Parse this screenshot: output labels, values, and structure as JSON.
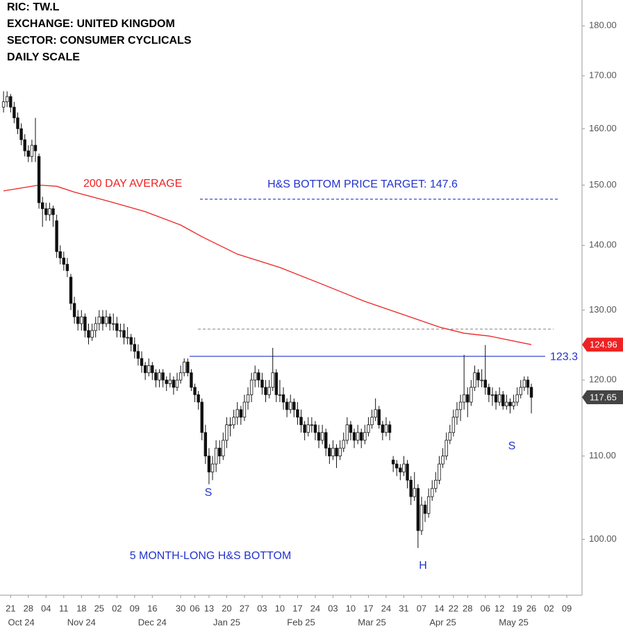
{
  "chart_data": {
    "type": "candlestick",
    "header": [
      "RIC:  TW.L",
      "EXCHANGE:  UNITED KINGDOM",
      "SECTOR:  CONSUMER CYCLICALS",
      "DAILY SCALE"
    ],
    "log_scale": true,
    "ylim": [
      93.8,
      185.4
    ],
    "yticks": [
      {
        "value": 100,
        "label": "100.00"
      },
      {
        "value": 110,
        "label": "110.00"
      },
      {
        "value": 120,
        "label": "120.00"
      },
      {
        "value": 130,
        "label": "130.00"
      },
      {
        "value": 140,
        "label": "140.00"
      },
      {
        "value": 150,
        "label": "150.00"
      },
      {
        "value": 160,
        "label": "160.00"
      },
      {
        "value": 170,
        "label": "170.00"
      },
      {
        "value": 180,
        "label": "180.00"
      }
    ],
    "xlim": [
      -1,
      163.3
    ],
    "xticks": [
      {
        "value": 2,
        "label": "21"
      },
      {
        "value": 7,
        "label": "28"
      },
      {
        "value": 12,
        "label": "04"
      },
      {
        "value": 17,
        "label": "11"
      },
      {
        "value": 22,
        "label": "18"
      },
      {
        "value": 27,
        "label": "25"
      },
      {
        "value": 32,
        "label": "02"
      },
      {
        "value": 37,
        "label": "09"
      },
      {
        "value": 42,
        "label": "16"
      },
      {
        "value": 50,
        "label": "30"
      },
      {
        "value": 54,
        "label": "06"
      },
      {
        "value": 58,
        "label": "13"
      },
      {
        "value": 63,
        "label": "20"
      },
      {
        "value": 68,
        "label": "27"
      },
      {
        "value": 73,
        "label": "03"
      },
      {
        "value": 78,
        "label": "10"
      },
      {
        "value": 83,
        "label": "17"
      },
      {
        "value": 88,
        "label": "24"
      },
      {
        "value": 93,
        "label": "03"
      },
      {
        "value": 98,
        "label": "10"
      },
      {
        "value": 103,
        "label": "17"
      },
      {
        "value": 108,
        "label": "24"
      },
      {
        "value": 113,
        "label": "31"
      },
      {
        "value": 118,
        "label": "07"
      },
      {
        "value": 123,
        "label": "14"
      },
      {
        "value": 127,
        "label": "22"
      },
      {
        "value": 131,
        "label": "28"
      },
      {
        "value": 136,
        "label": "06"
      },
      {
        "value": 140,
        "label": "12"
      },
      {
        "value": 145,
        "label": "19"
      },
      {
        "value": 149,
        "label": "26"
      },
      {
        "value": 154,
        "label": "02"
      },
      {
        "value": 159,
        "label": "09"
      }
    ],
    "month_labels": [
      {
        "value": 5,
        "label": "Oct 24"
      },
      {
        "value": 22,
        "label": "Nov 24"
      },
      {
        "value": 42,
        "label": "Dec 24"
      },
      {
        "value": 63,
        "label": "Jan 25"
      },
      {
        "value": 84,
        "label": "Feb 25"
      },
      {
        "value": 104,
        "label": "Mar 25"
      },
      {
        "value": 124,
        "label": "Apr 25"
      },
      {
        "value": 144,
        "label": "May 25"
      }
    ],
    "candles": [
      [
        164,
        167,
        163,
        165
      ],
      [
        165,
        167,
        164,
        166
      ],
      [
        166,
        166.5,
        163,
        164
      ],
      [
        164,
        165,
        161,
        162
      ],
      [
        162,
        163,
        159,
        160
      ],
      [
        160,
        161,
        157,
        158
      ],
      [
        158,
        159,
        155,
        156
      ],
      [
        156,
        157,
        154,
        155
      ],
      [
        155,
        158,
        154,
        157
      ],
      [
        157,
        162,
        154,
        156
      ],
      [
        155,
        155.5,
        146,
        147
      ],
      [
        147,
        148,
        143,
        146
      ],
      [
        146,
        147,
        144,
        145
      ],
      [
        145,
        147,
        144,
        146
      ],
      [
        146,
        146.5,
        143,
        145
      ],
      [
        144,
        145,
        138,
        139
      ],
      [
        139,
        140,
        137,
        138
      ],
      [
        138,
        139,
        136,
        137
      ],
      [
        137,
        138,
        135,
        136
      ],
      [
        135,
        135.5,
        130,
        131
      ],
      [
        131,
        132,
        128,
        129
      ],
      [
        129,
        130,
        127,
        128
      ],
      [
        128,
        130,
        127,
        129
      ],
      [
        129,
        129.5,
        126,
        127
      ],
      [
        127,
        128,
        125,
        126
      ],
      [
        126,
        128,
        125.5,
        127
      ],
      [
        127,
        129,
        126,
        128
      ],
      [
        128,
        130,
        127,
        129
      ],
      [
        129,
        130,
        127,
        128
      ],
      [
        128,
        130,
        127.5,
        129
      ],
      [
        129,
        129.5,
        127,
        128
      ],
      [
        128,
        129.5,
        127,
        128
      ],
      [
        128,
        129,
        126,
        127
      ],
      [
        127,
        128,
        126,
        127
      ],
      [
        127,
        128,
        125,
        126
      ],
      [
        126,
        127.5,
        125,
        126
      ],
      [
        126,
        126.5,
        124,
        125
      ],
      [
        125,
        126,
        123,
        124
      ],
      [
        124,
        125,
        122,
        123
      ],
      [
        123,
        124,
        121,
        122
      ],
      [
        122,
        122.5,
        120,
        121
      ],
      [
        121,
        123,
        120.5,
        122
      ],
      [
        122,
        122.5,
        120,
        121
      ],
      [
        121,
        121.5,
        119,
        120
      ],
      [
        120,
        121.5,
        119,
        121
      ],
      [
        121,
        121.5,
        119,
        120
      ],
      [
        120,
        120.5,
        118.5,
        119.5
      ],
      [
        119.5,
        121,
        119,
        120
      ],
      [
        120,
        120.5,
        118,
        119
      ],
      [
        119,
        121,
        118.5,
        120
      ],
      [
        120,
        122,
        119.5,
        121
      ],
      [
        121,
        123,
        120.5,
        122.5
      ],
      [
        122.5,
        123,
        120.5,
        121
      ],
      [
        121,
        121.5,
        118.5,
        119
      ],
      [
        119,
        119.5,
        117,
        118
      ],
      [
        118,
        118.5,
        116,
        117
      ],
      [
        117,
        117.5,
        112,
        113
      ],
      [
        113,
        114,
        109,
        110
      ],
      [
        110,
        111,
        106.5,
        108
      ],
      [
        108,
        110,
        107,
        109
      ],
      [
        109,
        112,
        108,
        111
      ],
      [
        111,
        112,
        109,
        110
      ],
      [
        110,
        113,
        109.5,
        112
      ],
      [
        112,
        115,
        111,
        114
      ],
      [
        114,
        115,
        112.5,
        114
      ],
      [
        114,
        116,
        113.5,
        115
      ],
      [
        115,
        117,
        114,
        116
      ],
      [
        116,
        116.5,
        114,
        115
      ],
      [
        115,
        118,
        114.5,
        117
      ],
      [
        117,
        119,
        116,
        118
      ],
      [
        118,
        121,
        117,
        120
      ],
      [
        120,
        122,
        119,
        121
      ],
      [
        121,
        121.5,
        119,
        120
      ],
      [
        120,
        121,
        118,
        119
      ],
      [
        119,
        120,
        117,
        118
      ],
      [
        118,
        120,
        117.5,
        119
      ],
      [
        119,
        124.5,
        118.5,
        121
      ],
      [
        121,
        121.5,
        117,
        118
      ],
      [
        118,
        120,
        117,
        118
      ],
      [
        118,
        119,
        116,
        117
      ],
      [
        117,
        117.5,
        115,
        116
      ],
      [
        116,
        118,
        115.5,
        117
      ],
      [
        117,
        117.5,
        115,
        116
      ],
      [
        116,
        117,
        114,
        115
      ],
      [
        115,
        116,
        113,
        114
      ],
      [
        114,
        114.5,
        112,
        113
      ],
      [
        113,
        115,
        112.5,
        114
      ],
      [
        114,
        115,
        113,
        114
      ],
      [
        114,
        114.5,
        112,
        113
      ],
      [
        113,
        114,
        111,
        112
      ],
      [
        112,
        114,
        111.5,
        113
      ],
      [
        113,
        113.5,
        110,
        111
      ],
      [
        111,
        111.5,
        109,
        110
      ],
      [
        110,
        112,
        109.5,
        111
      ],
      [
        111,
        111.5,
        108.5,
        110
      ],
      [
        110,
        112,
        109.5,
        111
      ],
      [
        111,
        113,
        110.5,
        112
      ],
      [
        112,
        115,
        111.5,
        114
      ],
      [
        114,
        114.5,
        112,
        113
      ],
      [
        113,
        113.5,
        111,
        112
      ],
      [
        112,
        114,
        111.5,
        113
      ],
      [
        113,
        113.5,
        111,
        112
      ],
      [
        112,
        114,
        111.5,
        113
      ],
      [
        113,
        115,
        112.5,
        114
      ],
      [
        114,
        116,
        113.5,
        115
      ],
      [
        115,
        117.5,
        114.5,
        116
      ],
      [
        116,
        116.5,
        113.5,
        114
      ],
      [
        114,
        114.5,
        112,
        113
      ],
      [
        113,
        115,
        112.5,
        114
      ],
      [
        114,
        114.5,
        112,
        113
      ],
      [
        109.5,
        110,
        108,
        109
      ],
      [
        109,
        109.5,
        107.5,
        108.5
      ],
      [
        108.5,
        109,
        107,
        108
      ],
      [
        108,
        110,
        107.5,
        109
      ],
      [
        109,
        109.5,
        106,
        107
      ],
      [
        107,
        107.5,
        104,
        105
      ],
      [
        105,
        108,
        104.5,
        106
      ],
      [
        106,
        106.5,
        99,
        101
      ],
      [
        101,
        105,
        100.5,
        104
      ],
      [
        104,
        104.5,
        102,
        103
      ],
      [
        103,
        106,
        102.5,
        105
      ],
      [
        105,
        107,
        104.5,
        106
      ],
      [
        106,
        108,
        105.5,
        107
      ],
      [
        107,
        110,
        106.5,
        109
      ],
      [
        109,
        111,
        108.5,
        110
      ],
      [
        110,
        113,
        109.5,
        112
      ],
      [
        112,
        114,
        111.5,
        113
      ],
      [
        113,
        116,
        112.5,
        115
      ],
      [
        115,
        117,
        114,
        116
      ],
      [
        116,
        118,
        114.5,
        117
      ],
      [
        117,
        123.5,
        116,
        118
      ],
      [
        118,
        119,
        115,
        117
      ],
      [
        117,
        120,
        116.5,
        119
      ],
      [
        119,
        122,
        118.5,
        121
      ],
      [
        121,
        121.5,
        119,
        120
      ],
      [
        120,
        121.5,
        119,
        120
      ],
      [
        120,
        124.9,
        118,
        119
      ],
      [
        119,
        119.5,
        117,
        118
      ],
      [
        118,
        119,
        116.5,
        118
      ],
      [
        118,
        118.5,
        116,
        117
      ],
      [
        117,
        119,
        116.5,
        118
      ],
      [
        118,
        118.5,
        116,
        116.5
      ],
      [
        116.5,
        118,
        116,
        117
      ],
      [
        117,
        117.5,
        115.5,
        116.5
      ],
      [
        116.5,
        118,
        116,
        117
      ],
      [
        117,
        119,
        116.5,
        118
      ],
      [
        118,
        120,
        117.5,
        119
      ],
      [
        119,
        120.5,
        118.5,
        120
      ],
      [
        120,
        120.5,
        118,
        119
      ],
      [
        119,
        119.5,
        115.5,
        117.65
      ]
    ],
    "moving_average": {
      "name": "200 DAY AVERAGE",
      "color": "#ee2222",
      "x": [
        0,
        10,
        15,
        20,
        30,
        40,
        50,
        56,
        66,
        78,
        90,
        102,
        113,
        123,
        130,
        137,
        149
      ],
      "values": [
        149,
        150,
        149.8,
        148.8,
        147.2,
        145.5,
        143.3,
        141.4,
        138.6,
        136.5,
        133.9,
        131.3,
        129.3,
        127.5,
        126.6,
        126.2,
        124.96
      ]
    },
    "levels": [
      {
        "value": 147.6,
        "color": "#2233cc",
        "style": "dashed",
        "label": "H&S BOTTOM PRICE TARGET: 147.6"
      },
      {
        "value": 123.3,
        "color": "#2233cc",
        "style": "solid"
      },
      {
        "value": 127.2,
        "color": "#999999",
        "style": "dashed"
      }
    ],
    "annotations": [
      "S",
      "H",
      "S",
      "5 MONTH-LONG H&S BOTTOM"
    ]
  }
}
